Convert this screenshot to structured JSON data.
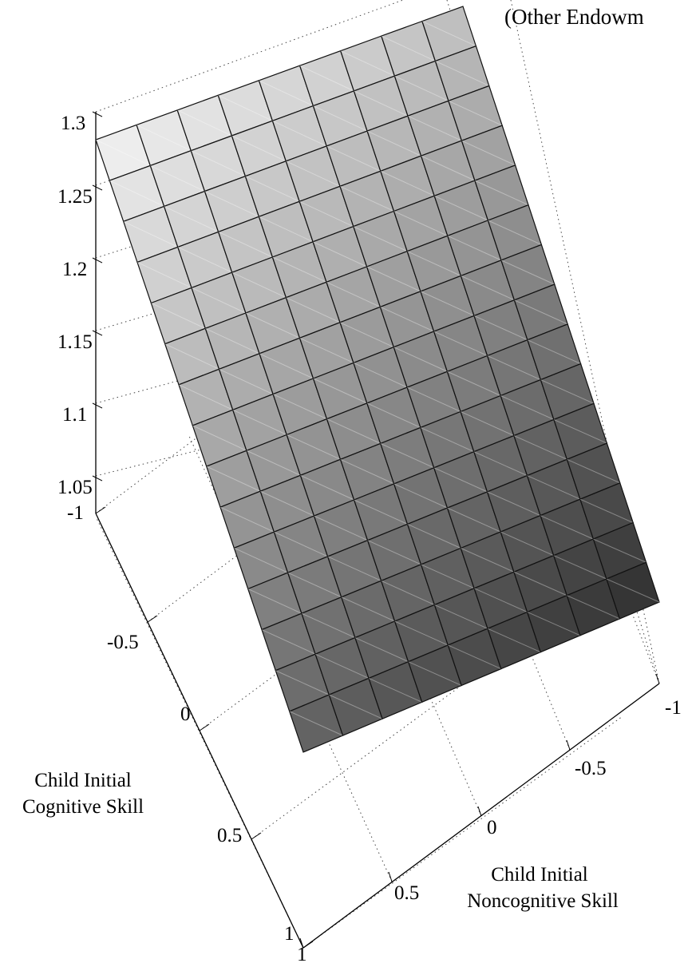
{
  "chart_data": {
    "type": "surface",
    "title_fragment": "(Other Endowm",
    "zlabel": "",
    "xlabel": [
      "Child Initial",
      "Cognitive Skill"
    ],
    "ylabel": [
      "Child Initial",
      "Noncognitive Skill"
    ],
    "z_ticks": [
      "1.3",
      "1.25",
      "1.2",
      "1.15",
      "1.1",
      "1.05"
    ],
    "x_ticks": [
      "-1",
      "-0.5",
      "0",
      "0.5",
      "1"
    ],
    "y_ticks": [
      "1",
      "0.5",
      "0",
      "-0.5",
      "-1"
    ],
    "x_range": [
      -1,
      1
    ],
    "y_range": [
      -1,
      1
    ],
    "z_range": [
      1.05,
      1.3
    ],
    "grid": true,
    "colormap": "gray",
    "grid_size": [
      9,
      15
    ],
    "surface_corners": {
      "cog_-1_noncog_1": 1.29,
      "cog_-1_noncog_-1": 1.21,
      "cog_1_noncog_1": 1.06,
      "cog_1_noncog_-1": 0.98
    }
  }
}
